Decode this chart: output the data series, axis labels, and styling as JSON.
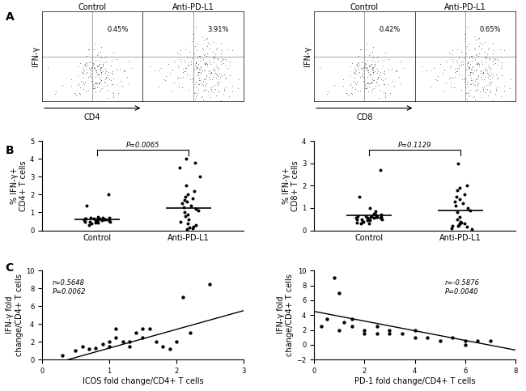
{
  "panel_A_left": {
    "title_left": "Control",
    "title_right": "Anti-PD-L1",
    "pct_left": "0.45%",
    "pct_right": "3.91%",
    "xlabel": "CD4",
    "ylabel": "IFN-γ"
  },
  "panel_A_right": {
    "title_left": "Control",
    "title_right": "Anti-PD-L1",
    "pct_left": "0.42%",
    "pct_right": "0.65%",
    "xlabel": "CD8",
    "ylabel": "IFN-γ"
  },
  "panel_B_left": {
    "ylabel": "% IFN-γ+\nCD4+ T cells",
    "xlabel_ticks": [
      "Control",
      "Anti-PD-L1"
    ],
    "pvalue": "P=0.0065",
    "ylim": [
      0,
      5
    ],
    "yticks": [
      0,
      1,
      2,
      3,
      4,
      5
    ],
    "control_data": [
      0.65,
      0.6,
      0.55,
      0.7,
      0.5,
      0.45,
      0.6,
      0.65,
      0.7,
      0.5,
      0.55,
      0.6,
      0.65,
      0.5,
      0.4,
      0.55,
      0.3,
      0.45,
      0.6,
      0.55,
      0.65,
      0.7,
      0.5,
      0.6,
      2.0,
      1.4,
      0.75
    ],
    "anti_data": [
      0.3,
      0.2,
      0.4,
      0.5,
      0.6,
      0.8,
      0.9,
      1.0,
      1.1,
      1.2,
      1.3,
      1.4,
      1.5,
      1.6,
      1.7,
      1.8,
      1.9,
      2.0,
      2.2,
      2.5,
      3.0,
      3.5,
      3.8,
      4.0,
      0.05,
      0.1,
      0.15
    ],
    "control_mean": 0.62,
    "anti_mean": 1.25
  },
  "panel_B_right": {
    "ylabel": "% IFN-γ+\nCD8+ T cells",
    "xlabel_ticks": [
      "Control",
      "Anti-PD-L1"
    ],
    "pvalue": "P=0.1129",
    "ylim": [
      0,
      4
    ],
    "yticks": [
      0,
      1,
      2,
      3,
      4
    ],
    "control_data": [
      0.65,
      0.6,
      0.55,
      0.7,
      0.5,
      0.45,
      0.3,
      0.35,
      0.4,
      0.5,
      0.55,
      0.6,
      0.65,
      0.5,
      0.4,
      0.55,
      0.3,
      0.45,
      0.6,
      0.55,
      0.65,
      0.7,
      0.5,
      0.6,
      2.7,
      1.5,
      1.0,
      0.85,
      0.75
    ],
    "anti_data": [
      0.3,
      0.2,
      0.4,
      0.5,
      0.6,
      0.8,
      0.9,
      1.0,
      1.1,
      1.2,
      1.3,
      1.4,
      1.5,
      1.6,
      1.8,
      1.9,
      2.0,
      3.0,
      0.05,
      0.1,
      0.15,
      0.2,
      0.25,
      0.3,
      0.35
    ],
    "control_mean": 0.68,
    "anti_mean": 0.88
  },
  "panel_C_left": {
    "xlabel": "ICOS fold change/CD4+ T cells",
    "ylabel": "IFN-γ fold\nchange/CD4+ T cells",
    "annotation": "r=0.5648\nP=0.0062",
    "xlim": [
      0,
      3
    ],
    "ylim": [
      0,
      10
    ],
    "xticks": [
      0,
      1,
      2,
      3
    ],
    "yticks": [
      0,
      2,
      4,
      6,
      8,
      10
    ],
    "x_data": [
      0.5,
      0.6,
      0.7,
      0.8,
      0.9,
      1.0,
      1.0,
      1.1,
      1.1,
      1.2,
      1.3,
      1.3,
      1.4,
      1.5,
      1.5,
      1.6,
      1.7,
      1.8,
      1.9,
      2.0,
      2.1,
      2.2,
      2.5,
      0.3
    ],
    "y_data": [
      1.0,
      1.5,
      1.2,
      1.3,
      1.8,
      2.0,
      1.5,
      2.5,
      3.5,
      2.0,
      1.5,
      2.0,
      3.0,
      2.5,
      3.5,
      3.5,
      2.0,
      1.5,
      1.2,
      2.0,
      7.0,
      3.0,
      8.5,
      0.5
    ],
    "slope": 2.1,
    "intercept": -0.8
  },
  "panel_C_right": {
    "xlabel": "PD-1 fold change/CD4+ T cells",
    "ylabel": "IFN-γ fold\nchange/CD4+ T cells",
    "annotation": "r=-0.5876\nP=0.0040",
    "xlim": [
      0,
      8
    ],
    "ylim": [
      -2,
      10
    ],
    "xticks": [
      0,
      2,
      4,
      6,
      8
    ],
    "yticks": [
      -2,
      0,
      2,
      4,
      6,
      8,
      10
    ],
    "x_data": [
      0.5,
      0.8,
      1.0,
      1.2,
      1.5,
      1.5,
      2.0,
      2.0,
      2.5,
      2.5,
      3.0,
      3.0,
      3.5,
      4.0,
      4.0,
      4.5,
      5.0,
      5.5,
      6.0,
      6.0,
      6.5,
      7.0,
      0.3,
      1.0
    ],
    "y_data": [
      3.5,
      9.0,
      7.0,
      3.0,
      2.5,
      3.5,
      1.5,
      2.0,
      1.5,
      2.5,
      2.0,
      1.5,
      1.5,
      1.0,
      2.0,
      1.0,
      0.5,
      1.0,
      0.5,
      0.0,
      0.5,
      0.5,
      2.5,
      2.0
    ],
    "slope": -0.65,
    "intercept": 4.5
  },
  "label_fontsize": 7,
  "tick_fontsize": 6,
  "panel_label_fontsize": 10,
  "bg_color": "#f0f0f0"
}
